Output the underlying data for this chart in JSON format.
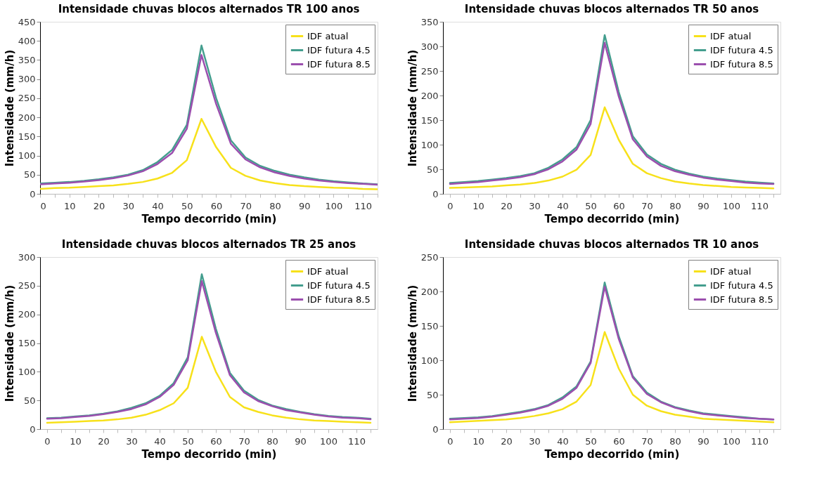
{
  "chart_data": [
    {
      "type": "line",
      "title": "Intensidade chuvas blocos alternados TR 100 anos",
      "xlabel": "Tempo decorrido (min)",
      "ylabel": "Intensidade (mm/h)",
      "x": [
        0,
        5,
        10,
        15,
        20,
        25,
        30,
        35,
        40,
        45,
        50,
        55,
        60,
        65,
        70,
        75,
        80,
        85,
        90,
        95,
        100,
        105,
        110,
        115
      ],
      "xlim": [
        0,
        115
      ],
      "xticks": [
        0,
        {
          "value": 5,
          "label": null
        },
        10,
        {
          "value": 15,
          "label": null
        },
        20,
        {
          "value": 25,
          "label": null
        },
        30,
        {
          "value": 35,
          "label": null
        },
        40,
        {
          "value": 45,
          "label": null
        },
        50,
        {
          "value": 55,
          "label": null
        },
        60,
        {
          "value": 65,
          "label": null
        },
        70,
        {
          "value": 75,
          "label": null
        },
        80,
        {
          "value": 85,
          "label": null
        },
        90,
        {
          "value": 95,
          "label": null
        },
        100,
        {
          "value": 105,
          "label": null
        },
        110,
        {
          "value": 115,
          "label": null
        }
      ],
      "ylim": [
        0,
        450
      ],
      "yticks": [
        0,
        50,
        100,
        150,
        200,
        250,
        300,
        350,
        400,
        450
      ],
      "grid": false,
      "legend": "top right",
      "marker": "none",
      "line_style": "solid",
      "series": [
        {
          "name": "IDF atual",
          "color": "#f7e11a",
          "values": [
            13,
            15,
            16,
            18,
            20,
            22,
            26,
            31,
            40,
            55,
            88,
            196,
            122,
            68,
            47,
            35,
            28,
            23,
            20,
            18,
            16,
            15,
            13,
            12
          ]
        },
        {
          "name": "IDF futura 4.5",
          "color": "#449e8e",
          "values": [
            27,
            29,
            31,
            34,
            38,
            43,
            50,
            62,
            83,
            115,
            180,
            388,
            250,
            140,
            95,
            73,
            60,
            50,
            43,
            37,
            33,
            30,
            27,
            25
          ]
        },
        {
          "name": "IDF futura 8.5",
          "color": "#9b4fae",
          "values": [
            25,
            27,
            29,
            32,
            36,
            41,
            48,
            59,
            78,
            107,
            170,
            363,
            235,
            131,
            90,
            69,
            56,
            47,
            40,
            35,
            31,
            28,
            26,
            24
          ]
        }
      ]
    },
    {
      "type": "line",
      "title": "Intensidade chuvas blocos alternados TR 50 anos",
      "xlabel": "Tempo decorrido (min)",
      "ylabel": "Intensidade (mm/h)",
      "x": [
        0,
        5,
        10,
        15,
        20,
        25,
        30,
        35,
        40,
        45,
        50,
        55,
        60,
        65,
        70,
        75,
        80,
        85,
        90,
        95,
        100,
        105,
        110,
        115
      ],
      "xlim": [
        -2.5,
        117.5
      ],
      "xticks": [
        0,
        {
          "value": 5,
          "label": null
        },
        10,
        {
          "value": 15,
          "label": null
        },
        20,
        {
          "value": 25,
          "label": null
        },
        30,
        {
          "value": 35,
          "label": null
        },
        40,
        {
          "value": 45,
          "label": null
        },
        50,
        {
          "value": 55,
          "label": null
        },
        60,
        {
          "value": 65,
          "label": null
        },
        70,
        {
          "value": 75,
          "label": null
        },
        80,
        {
          "value": 85,
          "label": null
        },
        90,
        {
          "value": 95,
          "label": null
        },
        100,
        {
          "value": 105,
          "label": null
        },
        110,
        {
          "value": 115,
          "label": null
        }
      ],
      "ylim": [
        0,
        350
      ],
      "yticks": [
        0,
        50,
        100,
        150,
        200,
        250,
        300,
        350
      ],
      "grid": false,
      "legend": "top right",
      "marker": "none",
      "line_style": "solid",
      "series": [
        {
          "name": "IDF atual",
          "color": "#f7e11a",
          "values": [
            12,
            13,
            14,
            15,
            17,
            19,
            22,
            27,
            35,
            49,
            79,
            176,
            110,
            61,
            42,
            32,
            25,
            21,
            18,
            16,
            14,
            13,
            12,
            11
          ]
        },
        {
          "name": "IDF futura 4.5",
          "color": "#449e8e",
          "values": [
            22,
            24,
            26,
            29,
            32,
            36,
            42,
            53,
            70,
            95,
            150,
            323,
            207,
            117,
            80,
            61,
            49,
            41,
            35,
            31,
            28,
            25,
            23,
            21
          ]
        },
        {
          "name": "IDF futura 8.5",
          "color": "#9b4fae",
          "values": [
            20,
            22,
            24,
            27,
            30,
            34,
            40,
            50,
            66,
            90,
            142,
            307,
            198,
            111,
            76,
            57,
            46,
            39,
            33,
            29,
            26,
            23,
            21,
            20
          ]
        }
      ]
    },
    {
      "type": "line",
      "title": "Intensidade chuvas blocos alternados TR 25 anos",
      "xlabel": "Tempo decorrido (min)",
      "ylabel": "Intensidade (mm/h)",
      "x": [
        0,
        5,
        10,
        15,
        20,
        25,
        30,
        35,
        40,
        45,
        50,
        55,
        60,
        65,
        70,
        75,
        80,
        85,
        90,
        95,
        100,
        105,
        110,
        115
      ],
      "xlim": [
        -2.5,
        117.5
      ],
      "xticks": [
        0,
        {
          "value": 5,
          "label": null
        },
        10,
        {
          "value": 15,
          "label": null
        },
        20,
        {
          "value": 25,
          "label": null
        },
        30,
        {
          "value": 35,
          "label": null
        },
        40,
        {
          "value": 45,
          "label": null
        },
        50,
        {
          "value": 55,
          "label": null
        },
        60,
        {
          "value": 65,
          "label": null
        },
        70,
        {
          "value": 75,
          "label": null
        },
        80,
        {
          "value": 85,
          "label": null
        },
        90,
        {
          "value": 95,
          "label": null
        },
        100,
        {
          "value": 105,
          "label": null
        },
        110,
        {
          "value": 115,
          "label": null
        }
      ],
      "ylim": [
        0,
        300
      ],
      "yticks": [
        0,
        50,
        100,
        150,
        200,
        250,
        300
      ],
      "grid": false,
      "legend": "top right",
      "marker": "none",
      "line_style": "solid",
      "series": [
        {
          "name": "IDF atual",
          "color": "#f7e11a",
          "values": [
            11,
            12,
            13,
            14,
            15,
            17,
            20,
            25,
            33,
            45,
            72,
            161,
            100,
            56,
            38,
            30,
            24,
            20,
            17,
            15,
            14,
            13,
            12,
            11
          ]
        },
        {
          "name": "IDF futura 4.5",
          "color": "#449e8e",
          "values": [
            19,
            20,
            22,
            24,
            27,
            31,
            37,
            45,
            58,
            80,
            125,
            270,
            175,
            98,
            67,
            51,
            41,
            35,
            30,
            26,
            23,
            21,
            20,
            18
          ]
        },
        {
          "name": "IDF futura 8.5",
          "color": "#9b4fae",
          "values": [
            18,
            19,
            21,
            23,
            26,
            30,
            35,
            43,
            56,
            77,
            120,
            258,
            168,
            94,
            64,
            49,
            40,
            33,
            29,
            25,
            22,
            20,
            19,
            17
          ]
        }
      ]
    },
    {
      "type": "line",
      "title": "Intensidade chuvas blocos alternados TR 10 anos",
      "xlabel": "Tempo decorrido (min)",
      "ylabel": "Intensidade (mm/h)",
      "x": [
        0,
        5,
        10,
        15,
        20,
        25,
        30,
        35,
        40,
        45,
        50,
        55,
        60,
        65,
        70,
        75,
        80,
        85,
        90,
        95,
        100,
        105,
        110,
        115
      ],
      "xlim": [
        -2.5,
        117.5
      ],
      "xticks": [
        0,
        {
          "value": 5,
          "label": null
        },
        10,
        {
          "value": 15,
          "label": null
        },
        20,
        {
          "value": 25,
          "label": null
        },
        30,
        {
          "value": 35,
          "label": null
        },
        40,
        {
          "value": 45,
          "label": null
        },
        50,
        {
          "value": 55,
          "label": null
        },
        60,
        {
          "value": 65,
          "label": null
        },
        70,
        {
          "value": 75,
          "label": null
        },
        80,
        {
          "value": 85,
          "label": null
        },
        90,
        {
          "value": 95,
          "label": null
        },
        100,
        {
          "value": 105,
          "label": null
        },
        110,
        {
          "value": 115,
          "label": null
        }
      ],
      "ylim": [
        0,
        250
      ],
      "yticks": [
        0,
        50,
        100,
        150,
        200,
        250
      ],
      "grid": false,
      "legend": "top right",
      "marker": "none",
      "line_style": "solid",
      "series": [
        {
          "name": "IDF atual",
          "color": "#f7e11a",
          "values": [
            10,
            11,
            12,
            13,
            14,
            16,
            19,
            23,
            29,
            40,
            64,
            141,
            88,
            50,
            34,
            26,
            21,
            18,
            15,
            14,
            13,
            12,
            11,
            10
          ]
        },
        {
          "name": "IDF futura 4.5",
          "color": "#449e8e",
          "values": [
            15,
            16,
            17,
            19,
            22,
            25,
            29,
            35,
            46,
            62,
            98,
            213,
            135,
            77,
            53,
            40,
            32,
            27,
            23,
            21,
            19,
            17,
            15,
            14
          ]
        },
        {
          "name": "IDF futura 8.5",
          "color": "#9b4fae",
          "values": [
            14,
            15,
            16,
            18,
            21,
            24,
            28,
            34,
            44,
            60,
            96,
            207,
            131,
            75,
            51,
            39,
            31,
            26,
            22,
            20,
            18,
            16,
            15,
            14
          ]
        }
      ]
    }
  ]
}
